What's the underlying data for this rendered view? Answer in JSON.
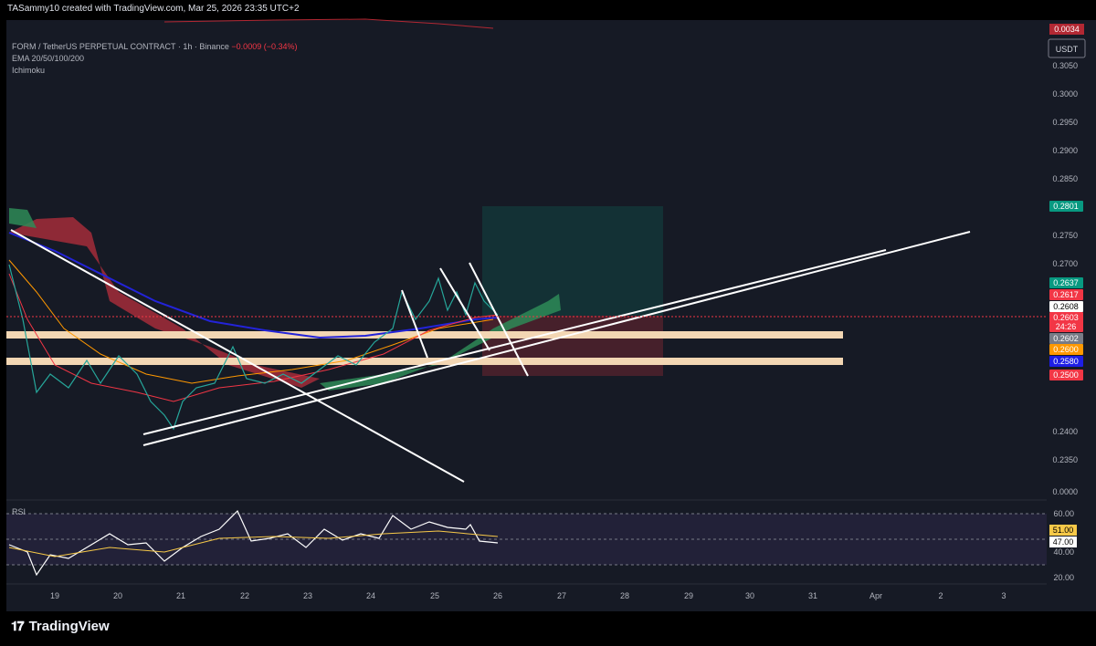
{
  "header": {
    "credit": "TASammy10 created with TradingView.com, Mar 25, 2026 23:35 UTC+2"
  },
  "symbol": {
    "name": "FORM / TetherUS PERPETUAL CONTRACT · 1h · Binance",
    "change": "−0.0009 (−0.34%)"
  },
  "indicators": [
    "EMA 20/50/100/200",
    "Ichimoku"
  ],
  "currency": "USDT",
  "price_axis": {
    "ticks": [
      "0.3050",
      "0.3000",
      "0.2950",
      "0.2900",
      "0.2850",
      "0.2750",
      "0.2700",
      "0.2400",
      "0.2350",
      "0.0000"
    ]
  },
  "price_labels": [
    {
      "text": "0.2801",
      "color": "#089981"
    },
    {
      "text": "0.2637",
      "color": "#089981"
    },
    {
      "text": "0.2617",
      "color": "#f23645"
    },
    {
      "text": "0.2608",
      "color": "#ffffff"
    },
    {
      "text": "0.2603",
      "color": "#f23645"
    },
    {
      "text": "24:26",
      "color": "#f23645"
    },
    {
      "text": "0.2602",
      "color": "#787b86"
    },
    {
      "text": "0.2600",
      "color": "#ff9800"
    },
    {
      "text": "0.2580",
      "color": "#1e1ee6"
    },
    {
      "text": "0.2500",
      "color": "#f23645"
    }
  ],
  "top_badge": {
    "text": "0.0034",
    "color": "#b22833"
  },
  "rsi": {
    "label": "RSI",
    "ticks": [
      "60.00",
      "40.00",
      "20.00"
    ],
    "labels": [
      {
        "text": "51.00",
        "color": "#f7c948"
      },
      {
        "text": "47.00",
        "color": "#ffffff"
      }
    ]
  },
  "time_axis": [
    "19",
    "20",
    "21",
    "22",
    "23",
    "24",
    "25",
    "26",
    "27",
    "28",
    "29",
    "30",
    "31",
    "Apr",
    "2",
    "3"
  ],
  "brand": "TradingView",
  "chart_data": {
    "type": "line",
    "title": "FORM / TetherUS PERPETUAL CONTRACT · 1h · Binance",
    "ylim": [
      0.23,
      0.306
    ],
    "series": [
      {
        "x": [
          "19",
          "20",
          "21",
          "22",
          "23",
          "24",
          "25",
          "26"
        ],
        "values": [
          0.262,
          0.252,
          0.242,
          0.25,
          0.249,
          0.256,
          0.264,
          0.2603
        ]
      }
    ],
    "levels": [
      0.259,
      0.2548
    ],
    "target": 0.2801,
    "stop": 0.25
  }
}
